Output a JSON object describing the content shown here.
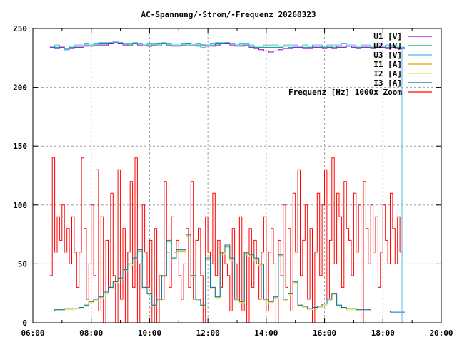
{
  "chart_data": {
    "type": "line",
    "title": "AC-Spannung/-Strom/-Frequenz 20260323",
    "xlabel": "",
    "ylabel": "",
    "xlim": [
      6,
      20
    ],
    "ylim": [
      0,
      250
    ],
    "grid": true,
    "legend_position": "top-right",
    "x_ticks": [
      {
        "v": 6,
        "label": "06:00"
      },
      {
        "v": 8,
        "label": "08:00"
      },
      {
        "v": 10,
        "label": "10:00"
      },
      {
        "v": 12,
        "label": "12:00"
      },
      {
        "v": 14,
        "label": "14:00"
      },
      {
        "v": 16,
        "label": "16:00"
      },
      {
        "v": 18,
        "label": "18:00"
      },
      {
        "v": 20,
        "label": "20:00"
      }
    ],
    "y_ticks": [
      {
        "v": 0,
        "label": "0"
      },
      {
        "v": 50,
        "label": "50"
      },
      {
        "v": 100,
        "label": "100"
      },
      {
        "v": 150,
        "label": "150"
      },
      {
        "v": 200,
        "label": "200"
      },
      {
        "v": 250,
        "label": "250"
      }
    ],
    "x_unit": "hours of day",
    "series": [
      {
        "name": "U1 [V]",
        "color": "#9400d3",
        "start": 6.583,
        "step": 0.16667,
        "values": [
          234,
          233,
          234,
          232,
          233,
          234,
          234,
          235,
          235,
          236,
          236,
          236,
          237,
          238,
          237,
          236,
          236,
          237,
          236,
          236,
          235,
          236,
          236,
          237,
          236,
          235,
          235,
          236,
          236,
          236,
          235,
          236,
          235,
          235,
          236,
          237,
          237,
          236,
          235,
          235,
          236,
          234,
          233,
          232,
          231,
          230,
          231,
          232,
          233,
          233,
          234,
          234,
          233,
          233,
          234,
          234,
          233,
          234,
          233,
          234,
          234,
          235,
          234,
          233,
          234,
          234,
          233,
          234,
          234,
          233,
          234,
          233,
          233
        ]
      },
      {
        "name": "U2 [V]",
        "color": "#009e73",
        "start": 6.583,
        "step": 0.16667,
        "values": [
          235,
          234,
          235,
          233,
          234,
          235,
          235,
          236,
          236,
          236,
          237,
          237,
          238,
          238,
          238,
          237,
          236,
          237,
          237,
          236,
          236,
          236,
          237,
          237,
          236,
          236,
          236,
          236,
          237,
          236,
          236,
          236,
          236,
          236,
          237,
          237,
          238,
          237,
          236,
          236,
          236,
          235,
          234,
          234,
          234,
          234,
          234,
          234,
          235,
          234,
          235,
          235,
          234,
          234,
          235,
          235,
          234,
          235,
          234,
          235,
          235,
          235,
          235,
          234,
          235,
          235,
          234,
          235,
          235,
          234,
          235,
          234,
          234
        ]
      },
      {
        "name": "U3 [V]",
        "color": "#56b4e9",
        "start": 6.583,
        "step": 0.16667,
        "values": [
          235,
          236,
          235,
          232,
          235,
          236,
          236,
          237,
          236,
          237,
          238,
          238,
          238,
          239,
          238,
          237,
          237,
          238,
          237,
          236,
          237,
          237,
          236,
          238,
          237,
          236,
          236,
          237,
          236,
          236,
          237,
          234,
          236,
          237,
          238,
          238,
          238,
          237,
          236,
          237,
          237,
          236,
          235,
          235,
          236,
          236,
          236,
          235,
          236,
          236,
          236,
          235,
          236,
          235,
          236,
          236,
          235,
          236,
          236,
          236,
          237,
          236,
          236,
          235,
          236,
          236,
          235,
          236,
          235,
          236,
          236,
          235,
          234
        ]
      },
      {
        "name": "I1 [A]",
        "color": "#e69f00",
        "start": 6.583,
        "step": 0.16667,
        "values": [
          10,
          11,
          11,
          12,
          12,
          12,
          13,
          15,
          18,
          20,
          22,
          26,
          30,
          35,
          38,
          45,
          50,
          55,
          61,
          30,
          25,
          15,
          20,
          40,
          69,
          55,
          61,
          61,
          74,
          40,
          20,
          15,
          54,
          30,
          22,
          59,
          65,
          54,
          20,
          18,
          59,
          57,
          54,
          49,
          20,
          18,
          22,
          57,
          20,
          25,
          34,
          15,
          14,
          12,
          13,
          14,
          16,
          20,
          25,
          15,
          13,
          12,
          12,
          11,
          11,
          11,
          10,
          10,
          10,
          10,
          10,
          10,
          10
        ]
      },
      {
        "name": "I2 [A]",
        "color": "#f0e442",
        "start": 6.583,
        "step": 0.16667,
        "values": [
          10,
          10,
          11,
          11,
          11,
          12,
          12,
          14,
          17,
          19,
          21,
          25,
          29,
          34,
          37,
          44,
          49,
          54,
          60,
          29,
          24,
          14,
          19,
          39,
          68,
          54,
          60,
          60,
          73,
          39,
          19,
          14,
          53,
          29,
          21,
          58,
          64,
          53,
          19,
          17,
          58,
          56,
          53,
          48,
          19,
          17,
          21,
          56,
          19,
          24,
          33,
          14,
          13,
          11,
          12,
          13,
          15,
          19,
          24,
          14,
          12,
          11,
          11,
          10,
          10,
          10,
          10,
          10,
          10,
          10,
          10,
          10,
          10
        ]
      },
      {
        "name": "I3 [A]",
        "color": "#0072b2",
        "start": 6.583,
        "step": 0.16667,
        "values": [
          10,
          11,
          11,
          12,
          12,
          12,
          13,
          15,
          18,
          20,
          22,
          26,
          30,
          35,
          38,
          45,
          50,
          55,
          62,
          30,
          25,
          15,
          20,
          40,
          70,
          55,
          62,
          62,
          75,
          40,
          20,
          15,
          55,
          30,
          22,
          60,
          66,
          55,
          20,
          18,
          60,
          58,
          55,
          50,
          20,
          18,
          22,
          58,
          20,
          25,
          35,
          15,
          14,
          12,
          13,
          14,
          16,
          20,
          25,
          15,
          13,
          12,
          12,
          11,
          11,
          11,
          10,
          10,
          10,
          10,
          9,
          9,
          9
        ]
      },
      {
        "name": "Frequenz [Hz] 1000x Zoom",
        "color": "#ff0000",
        "start": 6.583,
        "step": 0.08333,
        "values": [
          40,
          140,
          60,
          90,
          70,
          100,
          60,
          80,
          50,
          90,
          60,
          30,
          60,
          140,
          80,
          20,
          50,
          100,
          40,
          130,
          10,
          90,
          0,
          70,
          30,
          110,
          40,
          0,
          130,
          20,
          80,
          0,
          60,
          120,
          30,
          140,
          0,
          50,
          100,
          60,
          30,
          70,
          0,
          80,
          0,
          40,
          20,
          120,
          60,
          30,
          90,
          60,
          70,
          40,
          20,
          50,
          80,
          30,
          120,
          20,
          70,
          80,
          40,
          0,
          90,
          60,
          50,
          110,
          40,
          70,
          30,
          60,
          50,
          40,
          10,
          80,
          50,
          20,
          90,
          10,
          60,
          0,
          80,
          30,
          70,
          50,
          20,
          60,
          90,
          10,
          60,
          80,
          50,
          0,
          70,
          40,
          100,
          30,
          80,
          10,
          110,
          60,
          130,
          40,
          70,
          100,
          20,
          80,
          0,
          60,
          110,
          40,
          100,
          130,
          20,
          70,
          140,
          50,
          110,
          90,
          30,
          120,
          80,
          70,
          40,
          110,
          60,
          100,
          0,
          120,
          80,
          50,
          100,
          60,
          90,
          30,
          60,
          100,
          70,
          50,
          110,
          80,
          50,
          90,
          60
        ]
      }
    ]
  }
}
